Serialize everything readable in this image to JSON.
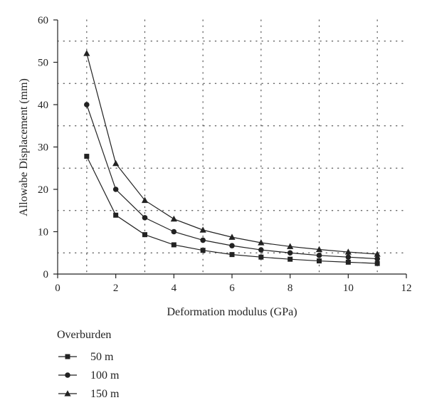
{
  "chart_data": {
    "type": "line",
    "title": "",
    "xlabel": "Deformation modulus (GPa)",
    "ylabel": "Allowabe Displacement (mm)",
    "xlim": [
      0,
      12
    ],
    "ylim": [
      0,
      60
    ],
    "xticks": [
      0,
      2,
      4,
      6,
      8,
      10,
      12
    ],
    "yticks": [
      0,
      10,
      20,
      30,
      40,
      50,
      60
    ],
    "grid": true,
    "grid_style": "dotted",
    "x": [
      1,
      2,
      3,
      4,
      5,
      6,
      7,
      8,
      9,
      10,
      11
    ],
    "legend": {
      "title": "Overburden",
      "placement": "bottom-left, below plot"
    },
    "series": [
      {
        "name": "50 m",
        "marker": "square",
        "values": [
          27.8,
          13.9,
          9.3,
          6.9,
          5.6,
          4.6,
          4.0,
          3.5,
          3.1,
          2.8,
          2.5
        ]
      },
      {
        "name": "100 m",
        "marker": "circle",
        "values": [
          40.0,
          20.0,
          13.3,
          10.0,
          8.0,
          6.7,
          5.7,
          5.0,
          4.4,
          4.0,
          3.6
        ]
      },
      {
        "name": "150 m",
        "marker": "triangle",
        "values": [
          52.1,
          26.1,
          17.4,
          13.0,
          10.4,
          8.7,
          7.4,
          6.5,
          5.8,
          5.2,
          4.7
        ]
      }
    ],
    "colors": {
      "line": "#222222",
      "grid": "#555555",
      "axis": "#222222"
    }
  }
}
